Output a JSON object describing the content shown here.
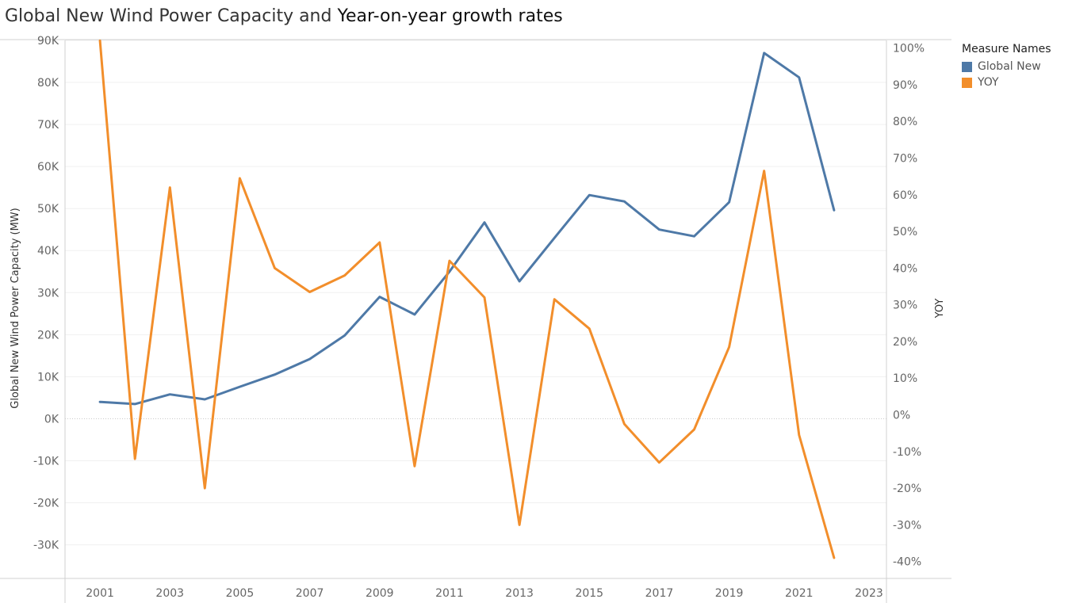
{
  "title": {
    "part1": "Global New Wind Power Capacity and ",
    "part2": "Year-on-year growth rates"
  },
  "legend": {
    "title": "Measure Names",
    "items": [
      {
        "label": "Global New",
        "color": "#4e79a7"
      },
      {
        "label": "YOY",
        "color": "#f28e2b"
      }
    ]
  },
  "chart_data": {
    "type": "line",
    "title": "Global New Wind Power Capacity and Year-on-year growth rates",
    "xlabel": "",
    "x_ticks": [
      "2001",
      "2003",
      "2005",
      "2007",
      "2009",
      "2011",
      "2013",
      "2015",
      "2017",
      "2019",
      "2021",
      "2023"
    ],
    "xlim": [
      2000,
      2023.5
    ],
    "left_axis": {
      "label": "Global New Wind Power Capacity (MW)",
      "ylim": [
        -38000,
        90000
      ],
      "ticks": [
        90000,
        80000,
        70000,
        60000,
        50000,
        40000,
        30000,
        20000,
        10000,
        0,
        -10000,
        -20000,
        -30000
      ],
      "tick_labels": [
        "90K",
        "80K",
        "70K",
        "60K",
        "50K",
        "40K",
        "30K",
        "20K",
        "10K",
        "0K",
        "-10K",
        "-20K",
        "-30K"
      ]
    },
    "right_axis": {
      "label": "YOY",
      "ylim": [
        -0.4461,
        1.0209
      ],
      "ticks": [
        1.0,
        0.9,
        0.8,
        0.7,
        0.6,
        0.5,
        0.4,
        0.3,
        0.2,
        0.1,
        0.0,
        -0.1,
        -0.2,
        -0.3,
        -0.4
      ],
      "tick_labels": [
        "100%",
        "90%",
        "80%",
        "70%",
        "60%",
        "50%",
        "40%",
        "30%",
        "20%",
        "10%",
        "0%",
        "-10%",
        "-20%",
        "-30%",
        "-40%"
      ]
    },
    "grid": true,
    "legend_position": "top-right",
    "x": [
      2001,
      2002,
      2003,
      2004,
      2005,
      2006,
      2007,
      2008,
      2009,
      2010,
      2011,
      2012,
      2013,
      2014,
      2015,
      2016,
      2017,
      2018,
      2019,
      2020,
      2021,
      2022
    ],
    "series": [
      {
        "name": "Global New",
        "axis": "left",
        "color": "#4e79a7",
        "values": [
          4000,
          3500,
          5800,
          4600,
          7600,
          10500,
          14200,
          19800,
          29000,
          24800,
          35000,
          46700,
          32700,
          43000,
          53200,
          51700,
          45000,
          43400,
          51500,
          87000,
          81200,
          49600
        ]
      },
      {
        "name": "YOY",
        "axis": "right",
        "color": "#f28e2b",
        "values": [
          1.02,
          -0.12,
          0.62,
          -0.2,
          0.645,
          0.4,
          0.335,
          0.38,
          0.47,
          -0.14,
          0.42,
          0.32,
          -0.3,
          0.315,
          0.235,
          -0.025,
          -0.13,
          -0.04,
          0.185,
          0.665,
          -0.055,
          -0.39
        ]
      }
    ]
  }
}
